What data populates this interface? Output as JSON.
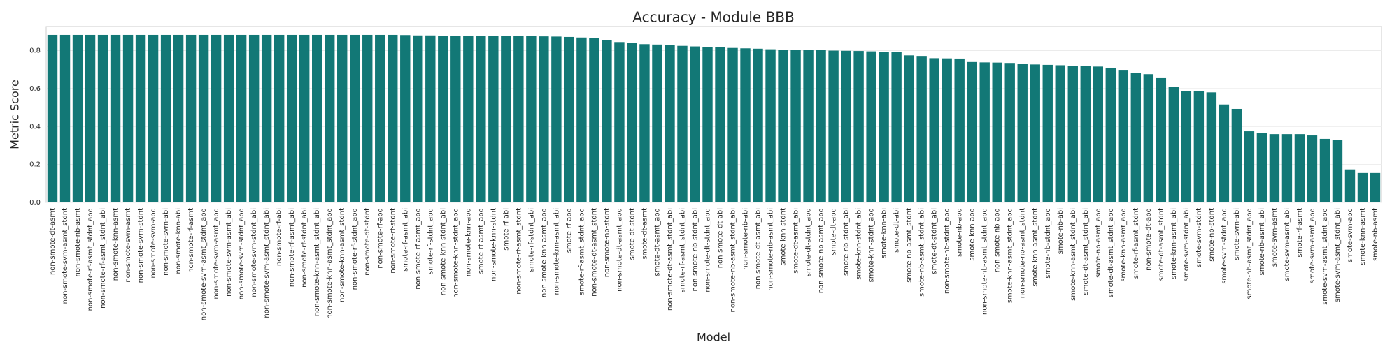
{
  "chart_data": {
    "type": "bar",
    "title": "Accuracy - Module BBB",
    "x_label": "Model",
    "y_label": "Metric Score",
    "categories": [
      "non-smote-dt-asmt",
      "non-smote-svm-asmt_stdnt",
      "non-smote-nb-asmt",
      "non-smote-rf-asmt_stdnt_abd",
      "non-smote-rf-asmt_stdnt_abi",
      "non-smote-knn-asmt",
      "non-smote-svm-asmt",
      "non-smote-svm-stdnt",
      "non-smote-svm-abd",
      "non-smote-svm-abi",
      "non-smote-knn-abi",
      "non-smote-rf-asmt",
      "non-smote-svm-asmt_stdnt_abd",
      "non-smote-svm-asmt_abd",
      "non-smote-svm-asmt_abi",
      "non-smote-svm-stdnt_abd",
      "non-smote-svm-stdnt_abi",
      "non-smote-svm-asmt_stdnt_abi",
      "non-smote-rf-abi",
      "non-smote-rf-asmt_abi",
      "non-smote-rf-stdnt_abi",
      "non-smote-knn-asmt_stdnt_abi",
      "non-smote-knn-asmt_stdnt_abd",
      "non-smote-knn-asmt_stdnt",
      "non-smote-rf-stdnt_abd",
      "non-smote-dt-stdnt",
      "non-smote-rf-abd",
      "non-smote-rf-stdnt",
      "smote-rf-asmt_abi",
      "non-smote-rf-asmt_abd",
      "smote-rf-stdnt_abd",
      "non-smote-knn-stdnt_abi",
      "non-smote-knn-stdnt_abd",
      "non-smote-knn-abd",
      "smote-rf-asmt_abd",
      "non-smote-knn-stdnt",
      "smote-rf-abi",
      "non-smote-rf-asmt_stdnt",
      "smote-rf-stdnt_abi",
      "non-smote-knn-asmt_abd",
      "non-smote-knn-asmt_abi",
      "smote-rf-abd",
      "smote-rf-asmt_stdnt_abd",
      "non-smote-dt-asmt_stdnt",
      "non-smote-nb-stdnt",
      "non-smote-dt-asmt_abd",
      "smote-dt-stdnt",
      "smote-dt-asmt",
      "smote-dt-asmt_abd",
      "non-smote-dt-asmt_stdnt_abi",
      "smote-rf-asmt_stdnt_abi",
      "non-smote-nb-stdnt_abi",
      "non-smote-dt-stdnt_abd",
      "non-smote-dt-abi",
      "non-smote-nb-asmt_stdnt_abi",
      "non-smote-nb-abi",
      "non-smote-dt-asmt_abi",
      "non-smote-nb-asmt_abi",
      "smote-knn-stdnt",
      "smote-dt-asmt_abi",
      "smote-dt-stdnt_abd",
      "non-smote-nb-asmt_abd",
      "smote-dt-abd",
      "smote-nb-stdnt_abi",
      "smote-knn-stdnt_abi",
      "smote-knn-stdnt_abd",
      "smote-knn-abi",
      "smote-dt-abi",
      "smote-nb-asmt_stdnt",
      "smote-nb-asmt_stdnt_abi",
      "smote-dt-stdnt_abi",
      "non-smote-nb-stdnt_abd",
      "smote-nb-abd",
      "smote-knn-abd",
      "non-smote-nb-asmt_stdnt_abd",
      "non-smote-nb-abd",
      "smote-knn-asmt_stdnt_abd",
      "non-smote-nb-asmt_stdnt",
      "smote-knn-asmt_stdnt",
      "smote-nb-stdnt_abd",
      "smote-nb-abi",
      "smote-knn-asmt_stdnt_abi",
      "smote-dt-asmt_stdnt_abi",
      "smote-nb-asmt_abd",
      "smote-dt-asmt_stdnt_abd",
      "smote-knn-asmt_abd",
      "smote-rf-asmt_stdnt",
      "non-smote-dt-abd",
      "smote-dt-asmt_stdnt",
      "smote-knn-asmt_abi",
      "smote-svm-stdnt_abi",
      "smote-svm-stdnt",
      "smote-nb-stdnt",
      "smote-svm-stdnt_abd",
      "smote-svm-abi",
      "smote-nb-asmt_stdnt_abd",
      "smote-nb-asmt_abi",
      "smote-svm-asmt",
      "smote-svm-asmt_abi",
      "smote-rf-asmt",
      "smote-svm-asmt_abd",
      "smote-svm-asmt_stdnt_abd",
      "smote-svm-asmt_stdnt_abi",
      "smote-svm-abd",
      "smote-knn-asmt",
      "smote-nb-asmt"
    ],
    "values": [
      0.883,
      0.883,
      0.883,
      0.883,
      0.883,
      0.883,
      0.883,
      0.883,
      0.883,
      0.883,
      0.883,
      0.883,
      0.883,
      0.883,
      0.883,
      0.883,
      0.883,
      0.883,
      0.883,
      0.883,
      0.883,
      0.883,
      0.883,
      0.883,
      0.883,
      0.883,
      0.883,
      0.883,
      0.882,
      0.88,
      0.88,
      0.879,
      0.879,
      0.879,
      0.878,
      0.878,
      0.878,
      0.877,
      0.876,
      0.875,
      0.874,
      0.872,
      0.869,
      0.865,
      0.857,
      0.845,
      0.84,
      0.834,
      0.832,
      0.83,
      0.825,
      0.822,
      0.82,
      0.818,
      0.814,
      0.812,
      0.81,
      0.807,
      0.805,
      0.804,
      0.803,
      0.802,
      0.8,
      0.799,
      0.798,
      0.796,
      0.794,
      0.792,
      0.775,
      0.772,
      0.76,
      0.759,
      0.758,
      0.74,
      0.738,
      0.737,
      0.735,
      0.73,
      0.727,
      0.725,
      0.723,
      0.72,
      0.718,
      0.716,
      0.71,
      0.695,
      0.683,
      0.676,
      0.655,
      0.61,
      0.588,
      0.587,
      0.58,
      0.516,
      0.493,
      0.375,
      0.365,
      0.36,
      0.36,
      0.36,
      0.353,
      0.335,
      0.33,
      0.174,
      0.155,
      0.155
    ],
    "color": "#127876",
    "ylim": [
      0,
      0.927
    ],
    "yticks": [
      {
        "value": 0,
        "label": "0.0"
      },
      0.2,
      0.4,
      0.6,
      0.8
    ],
    "grid": true
  }
}
